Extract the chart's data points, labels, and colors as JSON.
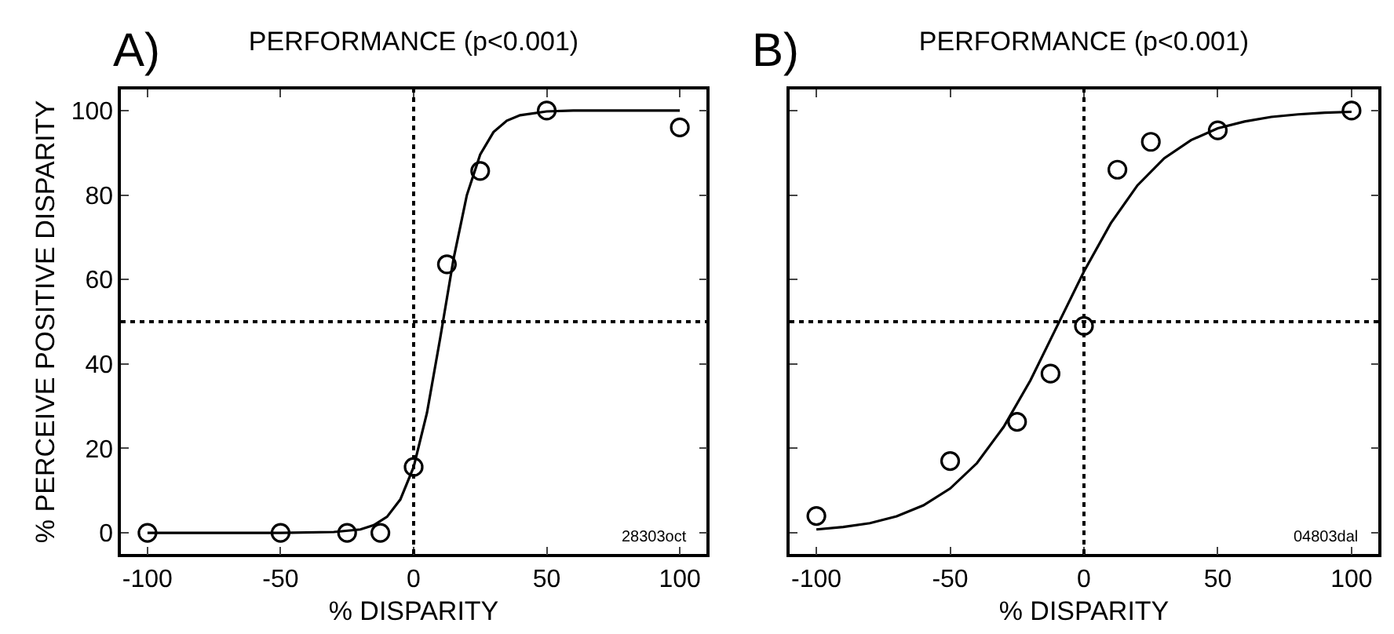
{
  "chart_data": [
    {
      "type": "scatter",
      "title": "PERFORMANCE (p<0.001)",
      "xlabel": "% DISPARITY",
      "ylabel": "% PERCEIVE POSITIVE DISPARITY",
      "annotations": [
        "A)",
        "28303oct"
      ],
      "x": [
        -100,
        -50,
        -25,
        -12.5,
        0,
        12.5,
        25,
        50,
        100
      ],
      "series": [
        {
          "color": "#000000",
          "marker": "circle",
          "values": [
            0,
            0,
            0,
            0,
            15.6,
            63.6,
            85.7,
            100,
            96
          ]
        },
        {
          "type": "line",
          "color": "#000000",
          "line_style": "solid",
          "x": [
            -100,
            -50,
            -30,
            -20,
            -15,
            -10,
            -5,
            0,
            5,
            10,
            15,
            20,
            25,
            30,
            35,
            40,
            50,
            60,
            100
          ],
          "values": [
            0,
            0,
            0.2,
            0.8,
            1.8,
            3.8,
            7.9,
            15.6,
            28.4,
            46.2,
            64.9,
            80,
            89.6,
            94.9,
            97.6,
            98.9,
            99.8,
            100,
            100
          ]
        }
      ],
      "grid": false,
      "xlim": [
        -110,
        110
      ],
      "ylim": [
        -5,
        105
      ],
      "xticks": [
        -100,
        -50,
        0,
        50,
        100
      ],
      "yticks": [
        0,
        20,
        40,
        60,
        80,
        100
      ],
      "ref_lines": [
        {
          "axis": "x",
          "value": 0,
          "line_style": "dotted"
        },
        {
          "axis": "y",
          "value": 50,
          "line_style": "dotted"
        }
      ]
    },
    {
      "type": "scatter",
      "title": "PERFORMANCE (p<0.001)",
      "xlabel": "% DISPARITY",
      "annotations": [
        "B)",
        "04803dal"
      ],
      "x": [
        -100,
        -50,
        -25,
        -12.5,
        0,
        12.5,
        25,
        50,
        100
      ],
      "series": [
        {
          "color": "#000000",
          "marker": "circle",
          "values": [
            4,
            17,
            26.3,
            37.7,
            49,
            86,
            92.6,
            95.3,
            100
          ]
        },
        {
          "type": "line",
          "color": "#000000",
          "line_style": "solid",
          "x": [
            -100,
            -90,
            -80,
            -70,
            -60,
            -50,
            -40,
            -30,
            -20,
            -10,
            0,
            10,
            20,
            30,
            40,
            50,
            60,
            70,
            80,
            90,
            100
          ],
          "values": [
            0.8,
            1.4,
            2.3,
            3.9,
            6.5,
            10.5,
            16.5,
            25.1,
            36.1,
            49,
            61.9,
            73.3,
            82.3,
            88.7,
            93,
            95.8,
            97.4,
            98.5,
            99.1,
            99.5,
            99.7
          ]
        }
      ],
      "grid": false,
      "tick_labels": "x",
      "xlim": [
        -110,
        110
      ],
      "ylim": [
        -5,
        105
      ],
      "xticks": [
        -100,
        -50,
        0,
        50,
        100
      ],
      "yticks": [
        0,
        20,
        40,
        60,
        80,
        100
      ],
      "ref_lines": [
        {
          "axis": "x",
          "value": 0,
          "line_style": "dotted"
        },
        {
          "axis": "y",
          "value": 50,
          "line_style": "dotted"
        }
      ]
    }
  ]
}
